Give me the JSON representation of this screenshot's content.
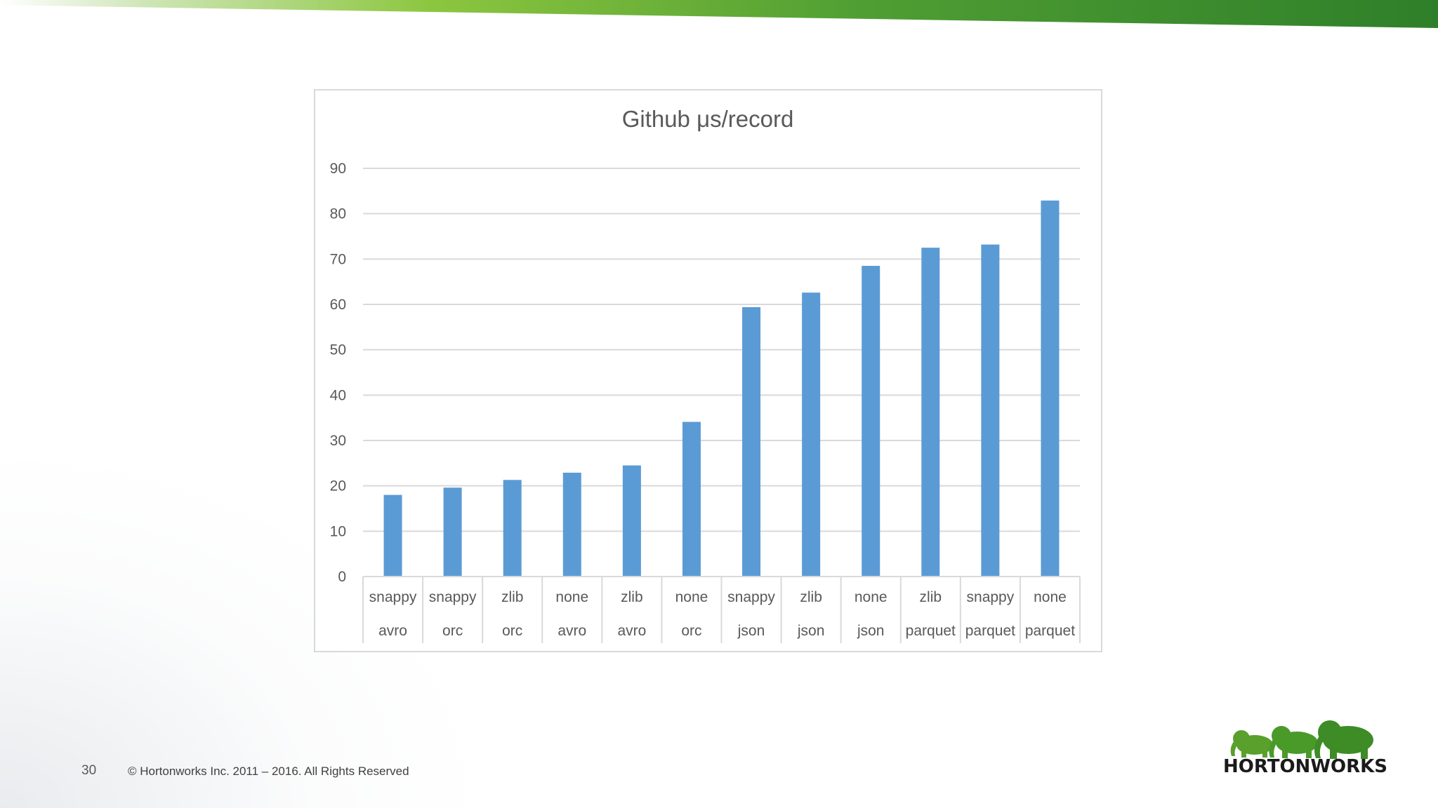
{
  "slide": {
    "number": "30",
    "copyright": "© Hortonworks Inc. 2011 – 2016. All Rights Reserved",
    "logo_text": "HORTONWORKS",
    "accent_green": "#4f9e33"
  },
  "chart_data": {
    "type": "bar",
    "title": "Github μs/record",
    "categories": [
      [
        "snappy",
        "avro"
      ],
      [
        "snappy",
        "orc"
      ],
      [
        "zlib",
        "orc"
      ],
      [
        "none",
        "avro"
      ],
      [
        "zlib",
        "avro"
      ],
      [
        "none",
        "orc"
      ],
      [
        "snappy",
        "json"
      ],
      [
        "zlib",
        "json"
      ],
      [
        "none",
        "json"
      ],
      [
        "zlib",
        "parquet"
      ],
      [
        "snappy",
        "parquet"
      ],
      [
        "none",
        "parquet"
      ]
    ],
    "values": [
      18,
      19.6,
      21.3,
      22.9,
      24.5,
      34.1,
      59.4,
      62.6,
      68.5,
      72.5,
      73.2,
      82.9
    ],
    "ylim": [
      0,
      90
    ],
    "yticks": [
      0,
      10,
      20,
      30,
      40,
      50,
      60,
      70,
      80,
      90
    ],
    "xlabel": "",
    "ylabel": "",
    "grid": true,
    "bar_color": "#5b9bd5"
  }
}
